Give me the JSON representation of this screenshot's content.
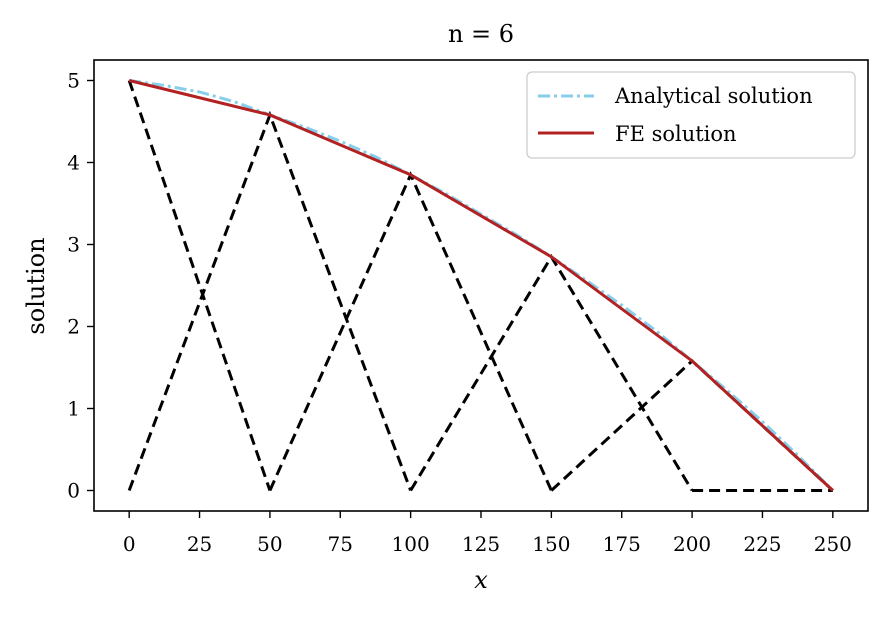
{
  "chart_data": {
    "type": "line",
    "title": "n = 6",
    "xlabel": "x",
    "ylabel": "solution",
    "xlim": [
      -12.5,
      262.5
    ],
    "ylim": [
      -0.25,
      5.25
    ],
    "xticks": [
      0,
      25,
      50,
      75,
      100,
      125,
      150,
      175,
      200,
      225,
      250
    ],
    "yticks": [
      0,
      1,
      2,
      3,
      4,
      5
    ],
    "grid": false,
    "legend_position": "top-right",
    "series": [
      {
        "name": "Analytical solution",
        "style": "dashdot",
        "color": "#87ceeb",
        "x": [
          0,
          12.5,
          25,
          37.5,
          50,
          62.5,
          75,
          87.5,
          100,
          112.5,
          125,
          137.5,
          150,
          162.5,
          175,
          187.5,
          200,
          212.5,
          225,
          237.5,
          250
        ],
        "y": [
          5.0,
          4.94,
          4.86,
          4.74,
          4.58,
          4.43,
          4.26,
          4.07,
          3.85,
          3.62,
          3.37,
          3.12,
          2.85,
          2.56,
          2.26,
          1.94,
          1.58,
          1.22,
          0.84,
          0.43,
          0.0
        ]
      },
      {
        "name": "FE solution",
        "style": "solid",
        "color": "#b22222",
        "x": [
          0,
          50,
          100,
          150,
          200,
          250
        ],
        "y": [
          5.0,
          4.58,
          3.85,
          2.85,
          1.58,
          0.0
        ]
      }
    ],
    "basis_functions": {
      "style": "dashed",
      "color": "#000000",
      "lines": [
        {
          "x": [
            0,
            50
          ],
          "y": [
            5.0,
            0
          ]
        },
        {
          "x": [
            0,
            50,
            100
          ],
          "y": [
            0,
            4.58,
            0
          ]
        },
        {
          "x": [
            50,
            100,
            150
          ],
          "y": [
            0,
            3.85,
            0
          ]
        },
        {
          "x": [
            100,
            150,
            200
          ],
          "y": [
            0,
            2.85,
            0
          ]
        },
        {
          "x": [
            150,
            200,
            250
          ],
          "y": [
            0,
            1.58,
            0
          ]
        },
        {
          "x": [
            200,
            250
          ],
          "y": [
            0,
            0
          ]
        }
      ]
    }
  }
}
